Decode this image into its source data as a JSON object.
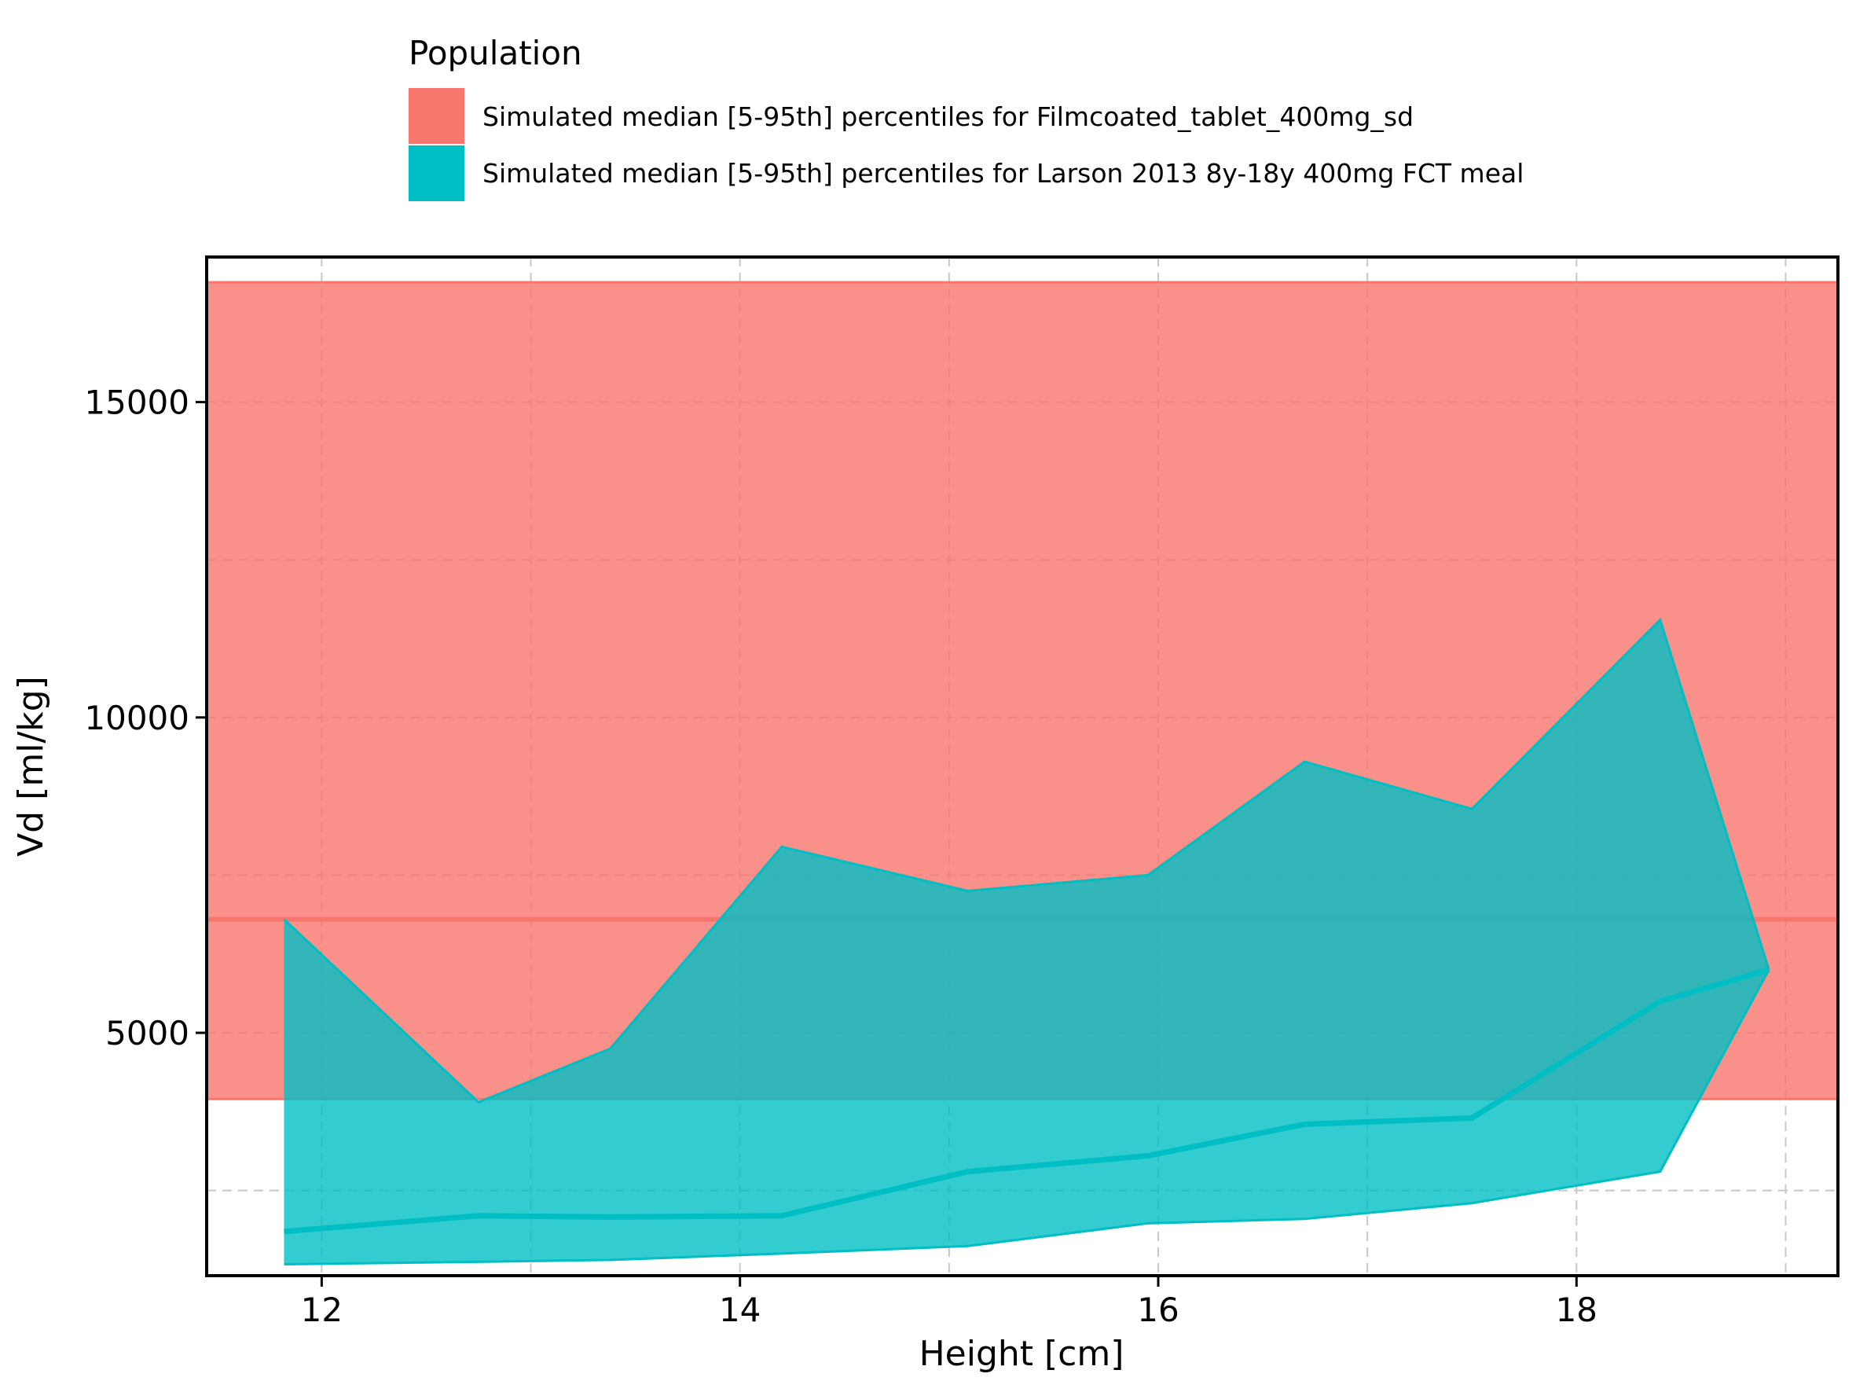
{
  "chart_data": {
    "type": "area",
    "xlabel": "Height [cm]",
    "ylabel": "Vd [ml/kg]",
    "xlim": [
      11.45,
      19.25
    ],
    "ylim": [
      1150,
      17300
    ],
    "xticks": [
      12,
      14,
      16,
      18
    ],
    "yticks": [
      5000,
      10000,
      15000
    ],
    "grid": true,
    "legend": {
      "title": "Population",
      "placement": "top",
      "entries": [
        "Simulated median [5-95th] percentiles for Filmcoated_tablet_400mg_sd",
        "Simulated median [5-95th] percentiles for Larson 2013 8y-18y 400mg FCT meal"
      ]
    },
    "series": [
      {
        "name": "Simulated median [5-95th] percentiles for Filmcoated_tablet_400mg_sd",
        "color": "#F8766D",
        "kind": "band",
        "span": "full-x",
        "median": 6800,
        "lower": 3950,
        "upper": 16900
      },
      {
        "name": "Simulated median [5-95th] percentiles for Larson 2013 8y-18y 400mg FCT meal",
        "color": "#00BFC4",
        "kind": "ribbon",
        "x": [
          11.82,
          12.75,
          13.38,
          14.2,
          15.09,
          15.95,
          16.7,
          17.5,
          18.4,
          18.92
        ],
        "median": [
          1850,
          2100,
          2080,
          2100,
          2800,
          3050,
          3550,
          3650,
          5500,
          6000
        ],
        "lower": [
          1330,
          1370,
          1400,
          1500,
          1620,
          1980,
          2050,
          2300,
          2800,
          6000
        ],
        "upper": [
          6800,
          3900,
          4750,
          7950,
          7250,
          7500,
          9300,
          8550,
          11550,
          6000
        ]
      }
    ]
  }
}
